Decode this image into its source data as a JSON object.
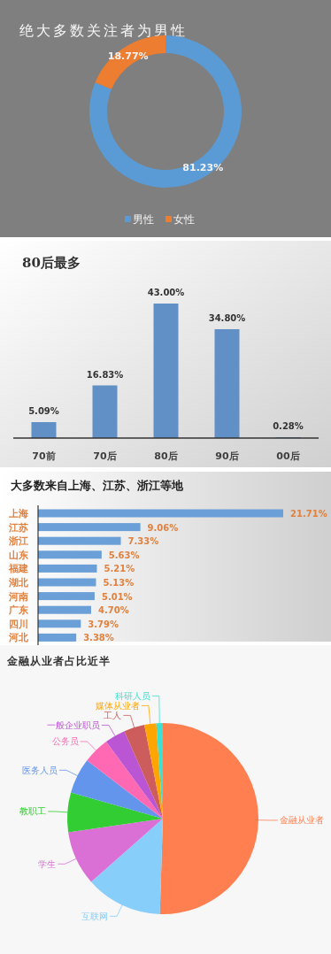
{
  "chart_data": [
    {
      "type": "donut",
      "title": "绝大多数关注者为男性",
      "categories": [
        "男性",
        "女性"
      ],
      "values": [
        81.23,
        18.77
      ],
      "colors": [
        "#5b9bd5",
        "#ed7d31"
      ],
      "value_labels": [
        "81.23%",
        "18.77%"
      ],
      "legend": "bottom"
    },
    {
      "type": "bar",
      "title": "80后最多",
      "categories": [
        "70前",
        "70后",
        "80后",
        "90后",
        "00后"
      ],
      "values": [
        5.09,
        16.83,
        43.0,
        34.8,
        0.28
      ],
      "color": "#6190c6",
      "value_labels": [
        "5.09%",
        "16.83%",
        "43.00%",
        "34.80%",
        "0.28%"
      ]
    },
    {
      "type": "bar",
      "orientation": "horizontal",
      "title": "大多数来自上海、江苏、浙江等地",
      "categories": [
        "上海",
        "江苏",
        "浙江",
        "山东",
        "福建",
        "湖北",
        "河南",
        "广东",
        "四川",
        "河北"
      ],
      "values": [
        21.71,
        9.06,
        7.33,
        5.63,
        5.21,
        5.13,
        5.01,
        4.7,
        3.79,
        3.38
      ],
      "color": "#6a9fd8",
      "value_labels": [
        "21.71%",
        "9.06%",
        "7.33%",
        "5.63%",
        "5.21%",
        "5.13%",
        "5.01%",
        "4.70%",
        "3.79%",
        "3.38%"
      ]
    },
    {
      "type": "pie",
      "title": "金融从业者占比近半",
      "categories": [
        "金融从业者",
        "互联网",
        "学生",
        "教职工",
        "医务人员",
        "公务员",
        "一般企业职员",
        "工人",
        "媒体从业者",
        "科研人员"
      ],
      "values": [
        50.5,
        13.0,
        9.2,
        6.7,
        6.0,
        4.5,
        3.5,
        3.5,
        2.0,
        1.1
      ],
      "colors": [
        "#ff7f50",
        "#87cefa",
        "#da70d6",
        "#32cd32",
        "#6495ed",
        "#ff69b4",
        "#ba55d3",
        "#cd5c5c",
        "#ffa500",
        "#40e0d0"
      ]
    }
  ]
}
